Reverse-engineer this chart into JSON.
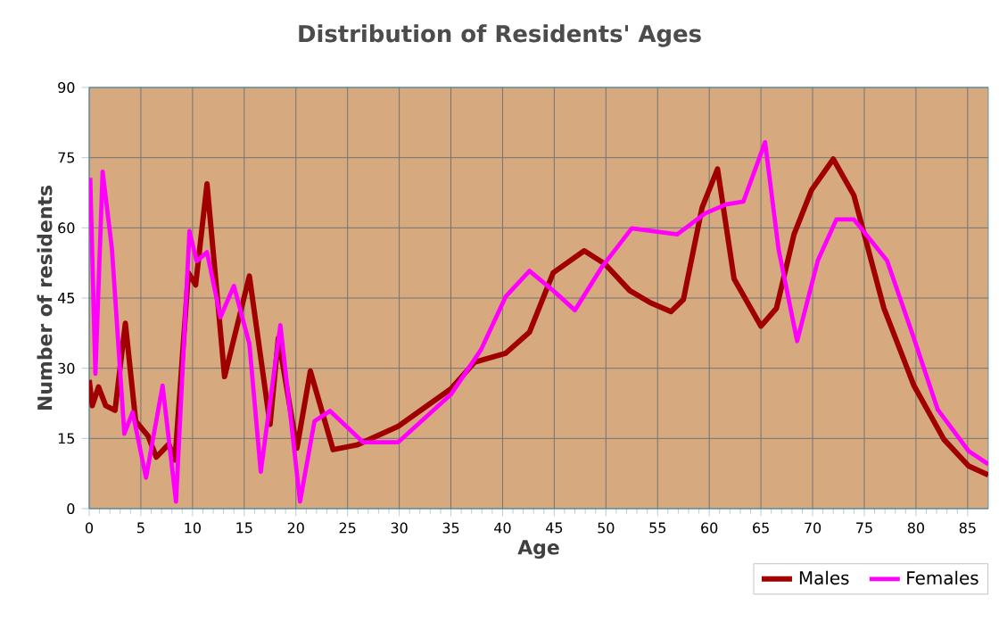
{
  "chart_data": {
    "type": "line",
    "title": "Distribution of Residents' Ages",
    "xlabel": "Age",
    "ylabel": "Number of residents",
    "xlim": [
      0,
      87
    ],
    "xticks": [
      0,
      5,
      10,
      15,
      20,
      25,
      30,
      35,
      40,
      45,
      50,
      55,
      60,
      65,
      70,
      75,
      80,
      85
    ],
    "ylim": [
      0,
      90
    ],
    "yticks": [
      0,
      15,
      30,
      45,
      60,
      75,
      90
    ],
    "grid": true,
    "legend": "bottom right",
    "marker": "none",
    "line_style": "solid",
    "series": [
      {
        "name": "Males",
        "color": "#a00000",
        "x": [
          0,
          0.3,
          0.9,
          1.6,
          2.5,
          3.5,
          4.5,
          5.7,
          6.5,
          7.7,
          8.3,
          9.6,
          10.3,
          11.4,
          13.1,
          15.5,
          17.5,
          18.3,
          20.1,
          21.4,
          23.6,
          25.9,
          29.9,
          35,
          37.3,
          40.3,
          42.6,
          44.9,
          47.9,
          49.9,
          52.3,
          54.3,
          56.3,
          57.5,
          59.3,
          60.8,
          62.4,
          65,
          66.5,
          68.2,
          69.9,
          72,
          74,
          76.9,
          79.8,
          82.7,
          85.1,
          87
        ],
        "values": [
          27.5,
          22,
          26,
          22,
          21,
          39.6,
          18.7,
          15.5,
          11,
          13.8,
          10.4,
          50.4,
          47.8,
          69.4,
          28.2,
          49.7,
          18,
          36.4,
          12.9,
          29.4,
          12.6,
          13.6,
          17.6,
          25.6,
          31.3,
          33.2,
          37.7,
          50.4,
          55.1,
          52.3,
          46.6,
          44,
          42.1,
          44.7,
          64.3,
          72.6,
          49.1,
          39,
          42.8,
          58.6,
          68.1,
          74.7,
          66.9,
          42.8,
          26.3,
          14.8,
          9.1,
          7.2
        ]
      },
      {
        "name": "Females",
        "color": "#ff00ff",
        "x": [
          0.1,
          0.6,
          1.3,
          2.2,
          3.4,
          4.2,
          5.5,
          7.1,
          8.4,
          9.7,
          10.4,
          11.4,
          12.7,
          14,
          15.5,
          16.6,
          18.5,
          20.4,
          21.8,
          23.3,
          26.5,
          29.9,
          35,
          37.9,
          40.3,
          42.6,
          44.9,
          47,
          49.6,
          52.5,
          56.9,
          59.6,
          61.6,
          63.3,
          65.4,
          66.7,
          68.5,
          70.5,
          72.3,
          74,
          77.2,
          79.8,
          82.1,
          85.1,
          87
        ],
        "values": [
          70.7,
          28.8,
          72,
          55.5,
          16,
          20.6,
          6.6,
          26.3,
          1.5,
          59.3,
          52.9,
          54.8,
          40.9,
          47.6,
          35.2,
          7.9,
          39.2,
          1.5,
          18.7,
          20.9,
          14.2,
          14.2,
          24.4,
          33.9,
          45.3,
          50.8,
          46.6,
          42.4,
          51.6,
          59.9,
          58.6,
          63.1,
          65,
          65.6,
          78.3,
          55.5,
          35.8,
          53,
          61.8,
          61.8,
          53,
          36.4,
          21.2,
          12.3,
          9.5
        ]
      }
    ]
  }
}
